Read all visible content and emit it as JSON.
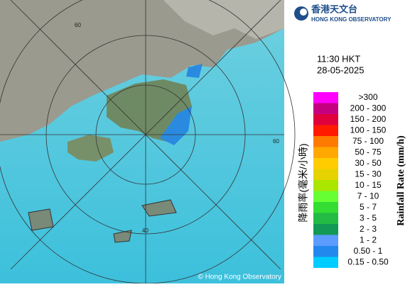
{
  "header": {
    "title_zh": "香港天文台",
    "title_en": "HONG KONG OBSERVATORY"
  },
  "time": "11:30 HKT",
  "date": "28-05-2025",
  "legend": {
    "title_zh": "降雨率(毫米/小時)",
    "title_en": "Rainfall Rate (mm/h)",
    "items": [
      {
        "label": ">300",
        "color": "#ff00ff"
      },
      {
        "label": "200 - 300",
        "color": "#c40080"
      },
      {
        "label": "150 - 200",
        "color": "#e0003c"
      },
      {
        "label": "100 - 150",
        "color": "#ff1a00"
      },
      {
        "label": "75 - 100",
        "color": "#ff7a00"
      },
      {
        "label": "50 - 75",
        "color": "#ffa800"
      },
      {
        "label": "30 - 50",
        "color": "#ffcc00"
      },
      {
        "label": "15 - 30",
        "color": "#e6d200"
      },
      {
        "label": "10 - 15",
        "color": "#aae600"
      },
      {
        "label": "7 - 10",
        "color": "#66ff33"
      },
      {
        "label": "5 - 7",
        "color": "#33dd33"
      },
      {
        "label": "3 - 5",
        "color": "#22bb44"
      },
      {
        "label": "2 - 3",
        "color": "#119955"
      },
      {
        "label": "1 - 2",
        "color": "#5c9cff"
      },
      {
        "label": "0.50 - 1",
        "color": "#2288ee"
      },
      {
        "label": "0.15 - 0.50",
        "color": "#00ccff"
      }
    ]
  },
  "map": {
    "ring_labels": [
      "60",
      "60",
      "40"
    ],
    "copyright": "© Hong Kong Observatory"
  }
}
